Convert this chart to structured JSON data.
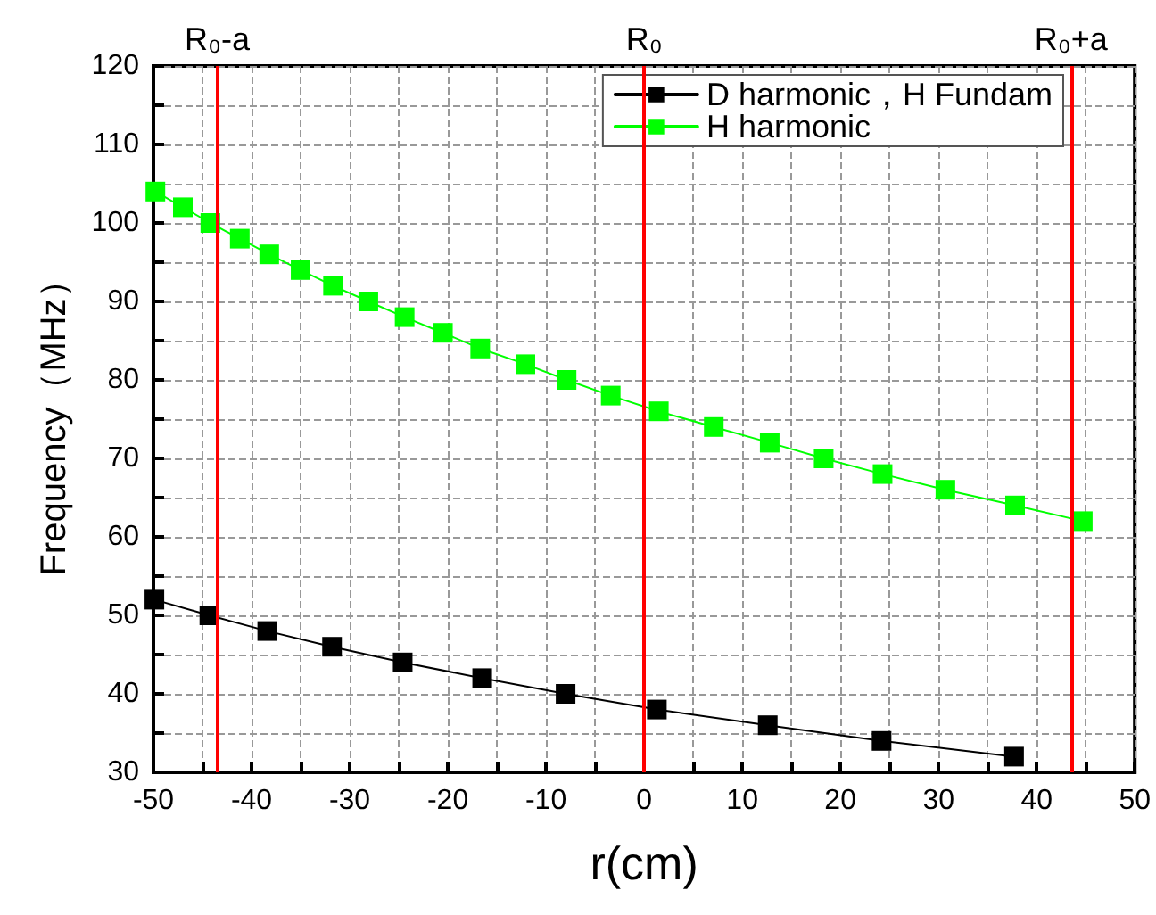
{
  "chart_data": {
    "type": "line",
    "xlabel": "r(cm)",
    "ylabel": "Frequency（MHz）",
    "xlim": [
      -50,
      50
    ],
    "xticks": [
      -50,
      {
        "value": -45,
        "label": null
      },
      -40,
      {
        "value": -35,
        "label": null
      },
      -30,
      {
        "value": -25,
        "label": null
      },
      -20,
      {
        "value": -15,
        "label": null
      },
      -10,
      {
        "value": -5,
        "label": null
      },
      0,
      {
        "value": 5,
        "label": null
      },
      10,
      {
        "value": 15,
        "label": null
      },
      20,
      {
        "value": 25,
        "label": null
      },
      30,
      {
        "value": 35,
        "label": null
      },
      40,
      {
        "value": 45,
        "label": null
      },
      50
    ],
    "ylim": [
      30,
      120
    ],
    "yticks": [
      30,
      {
        "value": 35,
        "label": null
      },
      40,
      {
        "value": 45,
        "label": null
      },
      50,
      {
        "value": 55,
        "label": null
      },
      60,
      {
        "value": 65,
        "label": null
      },
      70,
      {
        "value": 75,
        "label": null
      },
      80,
      {
        "value": 85,
        "label": null
      },
      90,
      {
        "value": 95,
        "label": null
      },
      100,
      {
        "value": 105,
        "label": null
      },
      110,
      {
        "value": 115,
        "label": null
      },
      120
    ],
    "series": [
      {
        "name": "D harmonic，H Fundam",
        "color": "#000000",
        "x": [
          -49.9,
          -44.3,
          -38.4,
          -31.8,
          -24.6,
          -16.5,
          -8.0,
          1.3,
          12.6,
          24.2,
          37.7
        ],
        "values": [
          52,
          50,
          48,
          46,
          44,
          42,
          40,
          38,
          36,
          34,
          32
        ]
      },
      {
        "name": "H harmonic",
        "color": "#00ff00",
        "x": [
          -49.8,
          -47.0,
          -44.2,
          -41.2,
          -38.2,
          -35.0,
          -31.7,
          -28.1,
          -24.4,
          -20.5,
          -16.7,
          -12.1,
          -7.9,
          -3.4,
          1.5,
          7.1,
          12.8,
          18.3,
          24.3,
          30.7,
          37.8,
          44.7
        ],
        "values": [
          104,
          102,
          100,
          98,
          96,
          94,
          92,
          90,
          88,
          86,
          84,
          82,
          80,
          78,
          76,
          74,
          72,
          70,
          68,
          66,
          64,
          62
        ]
      }
    ],
    "ref_lines": [
      {
        "axis": "x",
        "value": -43.5,
        "label": "R₀-a",
        "color": "#ff0000"
      },
      {
        "axis": "x",
        "value": 0,
        "label": "R₀",
        "color": "#ff0000"
      },
      {
        "axis": "x",
        "value": 43.5,
        "label": "R₀+a",
        "color": "#ff0000"
      }
    ],
    "marker": "square",
    "line_style": "solid",
    "grid": true,
    "legend": "top right"
  }
}
